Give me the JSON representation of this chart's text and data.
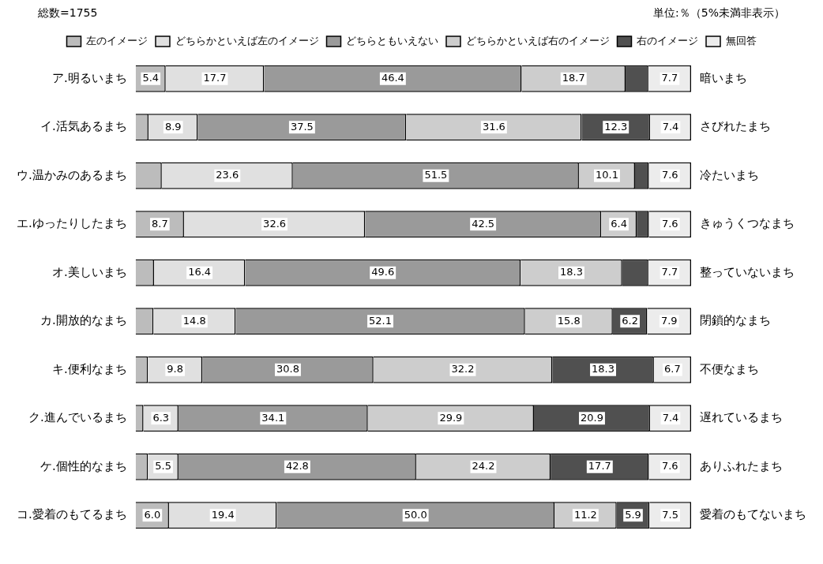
{
  "chart_data": {
    "type": "bar",
    "orientation": "horizontal",
    "stacked": true,
    "categories": [
      "ア.明るいまち",
      "イ.活気あるまち",
      "ウ.温かみのあるまち",
      "エ.ゆったりしたまち",
      "オ.美しいまち",
      "カ.開放的なまち",
      "キ.便利なまち",
      "ク.進んでいるまち",
      "ケ.個性的なまち",
      "コ.愛着のもてるまち"
    ],
    "y2_categories": [
      "暗いまち",
      "さびれたまち",
      "冷たいまち",
      "きゅうくつなまち",
      "整っていないまち",
      "閉鎖的なまち",
      "不便なまち",
      "遅れているまち",
      "ありふれたまち",
      "愛着のもてないまち"
    ],
    "series": [
      {
        "name": "左のイメージ",
        "color": "#bcbcbc",
        "values": [
          5.4,
          2.3,
          4.7,
          8.7,
          3.3,
          3.2,
          2.2,
          1.4,
          2.2,
          6.0
        ],
        "value_labels": [
          "5.4",
          null,
          null,
          "8.7",
          null,
          null,
          null,
          null,
          null,
          "6.0"
        ]
      },
      {
        "name": "どちらかといえば左のイメージ",
        "color": "#e0e0e0",
        "values": [
          17.7,
          8.9,
          23.6,
          32.6,
          16.4,
          14.8,
          9.8,
          6.3,
          5.5,
          19.4
        ],
        "value_labels": [
          "17.7",
          "8.9",
          "23.6",
          "32.6",
          "16.4",
          "14.8",
          "9.8",
          "6.3",
          "5.5",
          "19.4"
        ]
      },
      {
        "name": "どちらともいえない",
        "color": "#9a9a9a",
        "values": [
          46.4,
          37.5,
          51.5,
          42.5,
          49.6,
          52.1,
          30.8,
          34.1,
          42.8,
          50.0
        ],
        "value_labels": [
          "46.4",
          "37.5",
          "51.5",
          "42.5",
          "49.6",
          "52.1",
          "30.8",
          "34.1",
          "42.8",
          "50.0"
        ]
      },
      {
        "name": "どちらかといえば右のイメージ",
        "color": "#cdcdcd",
        "values": [
          18.7,
          31.6,
          10.1,
          6.4,
          18.3,
          15.8,
          32.2,
          29.9,
          24.2,
          11.2
        ],
        "value_labels": [
          "18.7",
          "31.6",
          "10.1",
          "6.4",
          "18.3",
          "15.8",
          "32.2",
          "29.9",
          "24.2",
          "11.2"
        ]
      },
      {
        "name": "右のイメージ",
        "color": "#505050",
        "values": [
          4.1,
          12.3,
          2.5,
          2.2,
          4.7,
          6.2,
          18.3,
          20.9,
          17.7,
          5.9
        ],
        "value_labels": [
          null,
          "12.3",
          null,
          null,
          null,
          "6.2",
          "18.3",
          "20.9",
          "17.7",
          "5.9"
        ]
      },
      {
        "name": "無回答",
        "color": "#ececec",
        "values": [
          7.7,
          7.4,
          7.6,
          7.6,
          7.7,
          7.9,
          6.7,
          7.4,
          7.6,
          7.5
        ],
        "value_labels": [
          "7.7",
          "7.4",
          "7.6",
          "7.6",
          "7.7",
          "7.9",
          "6.7",
          "7.4",
          "7.6",
          "7.5"
        ]
      }
    ],
    "xlim": [
      0,
      100
    ],
    "tick_labels": "y",
    "grid": false,
    "legend": "top",
    "annotations": [
      "総数=1755",
      "単位:％（5%未満非表示）"
    ]
  }
}
